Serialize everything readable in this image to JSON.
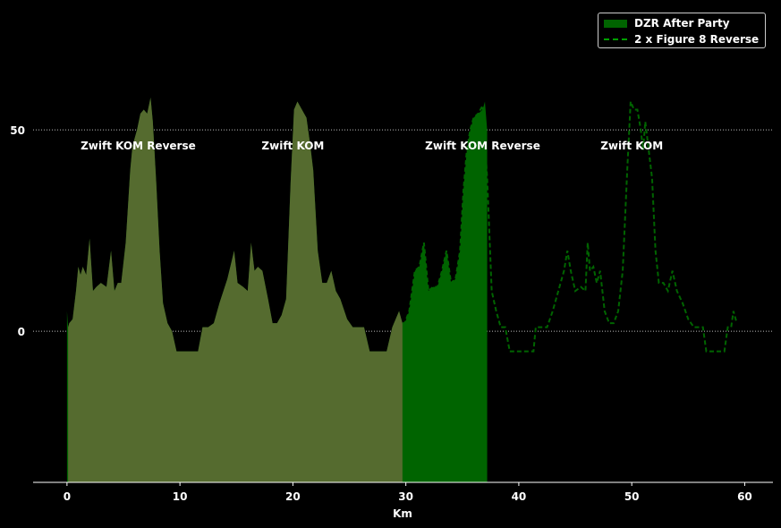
{
  "chart_data": {
    "type": "area",
    "xlabel": "Km",
    "ylabel": "",
    "xlim": [
      -3,
      62.5
    ],
    "ylim": [
      -37.5,
      80
    ],
    "xticks": [
      0,
      10,
      20,
      30,
      40,
      50,
      60
    ],
    "yticks": [
      0,
      50
    ],
    "grid": "horizontal dotted",
    "legend_position": "top-right",
    "colors": {
      "primary_fill": "#006400",
      "overlap_fill": "#556b2f",
      "dashed_line": "#006400",
      "background": "#000000",
      "text": "#ffffff"
    },
    "legend": [
      {
        "label": "DZR After Party",
        "style": "filled-area"
      },
      {
        "label": "2 x Figure 8 Reverse",
        "style": "dashed-line"
      }
    ],
    "segment_labels": [
      {
        "text": "Zwift KOM Reverse",
        "x": 6.3
      },
      {
        "text": "Zwift KOM",
        "x": 20
      },
      {
        "text": "Zwift KOM Reverse",
        "x": 36.8
      },
      {
        "text": "Zwift KOM",
        "x": 50
      }
    ],
    "series": [
      {
        "name": "DZR After Party",
        "x": [
          0,
          0.1,
          0.2,
          0.5,
          0.8,
          1.0,
          1.2,
          1.4,
          1.7,
          2.0,
          2.3,
          2.6,
          3.0,
          3.5,
          3.9,
          4.2,
          4.5,
          4.8,
          5.2,
          5.6,
          5.8,
          6.2,
          6.5,
          6.8,
          7.1,
          7.4,
          7.6,
          7.9,
          8.2,
          8.5,
          8.9,
          9.3,
          9.7,
          10.2,
          10.5,
          11.0,
          11.6,
          12.0,
          12.5,
          13.0,
          13.5,
          14.2,
          14.8,
          15.1,
          15.6,
          16.0,
          16.3,
          16.6,
          16.9,
          17.3,
          17.8,
          18.2,
          18.6,
          19.0,
          19.4,
          19.8,
          20.1,
          20.4,
          20.8,
          21.2,
          21.5,
          21.8,
          22.2,
          22.6,
          23.0,
          23.4,
          23.8,
          24.2,
          24.8,
          25.3,
          25.8,
          26.3,
          26.8,
          27.3,
          27.8,
          28.3,
          28.8,
          29.1,
          29.4,
          29.7,
          29.9,
          30.3,
          30.8,
          31.2,
          31.6,
          32.0,
          32.4,
          32.8,
          33.2,
          33.6,
          34.0,
          34.4,
          34.8,
          35.1,
          35.4,
          35.7,
          36.0,
          36.4,
          36.8,
          37.0,
          37.2
        ],
        "y": [
          5,
          1,
          2,
          3,
          10,
          16,
          14,
          16,
          14,
          23,
          10,
          11,
          12,
          11,
          20,
          10,
          12,
          12,
          22,
          40,
          46,
          50,
          54,
          55,
          54,
          58,
          52,
          37,
          20,
          7,
          2,
          0,
          -5,
          -5,
          -5,
          -5,
          -5,
          1,
          1,
          2,
          7,
          13,
          20,
          12,
          11,
          10,
          22,
          15,
          16,
          15,
          8,
          2,
          2,
          4,
          8,
          37,
          55,
          57,
          55,
          53,
          47,
          40,
          20,
          12,
          12,
          15,
          10,
          8,
          3,
          1,
          1,
          1,
          -5,
          -5,
          -5,
          -5,
          1,
          3,
          5,
          2,
          2,
          5,
          15,
          16,
          22,
          10,
          11,
          11,
          15,
          20,
          12,
          13,
          20,
          35,
          45,
          50,
          53,
          54,
          55,
          57,
          50
        ]
      },
      {
        "name": "2 x Figure 8 Reverse",
        "x": [
          29.7,
          29.9,
          30.3,
          30.8,
          31.2,
          31.6,
          32.0,
          32.4,
          32.8,
          33.2,
          33.6,
          34.0,
          34.4,
          34.8,
          35.1,
          35.4,
          35.7,
          36.0,
          36.4,
          36.8,
          37.2,
          37.6,
          38.0,
          38.4,
          38.8,
          39.2,
          39.5,
          40.0,
          40.5,
          41.0,
          41.3,
          41.5,
          42.0,
          42.5,
          43.0,
          43.5,
          44.0,
          44.3,
          44.6,
          45.0,
          45.5,
          45.9,
          46.1,
          46.3,
          46.6,
          46.9,
          47.2,
          47.6,
          48.0,
          48.4,
          48.8,
          49.2,
          49.6,
          49.9,
          50.2,
          50.5,
          50.8,
          51.0,
          51.2,
          51.5,
          51.8,
          52.1,
          52.4,
          52.8,
          53.2,
          53.6,
          54.0,
          54.5,
          55.0,
          55.5,
          56.0,
          56.3,
          56.6,
          57.0,
          57.5,
          57.9,
          58.2,
          58.5,
          58.8,
          59.0,
          59.3
        ],
        "y": [
          2,
          2,
          5,
          15,
          16,
          22,
          10,
          11,
          11,
          15,
          20,
          12,
          13,
          20,
          35,
          45,
          50,
          53,
          54,
          56,
          38,
          10,
          5,
          1,
          1,
          -5,
          -5,
          -5,
          -5,
          -5,
          -5,
          1,
          1,
          1,
          5,
          10,
          15,
          20,
          15,
          10,
          11,
          10,
          22,
          15,
          16,
          12,
          15,
          5,
          2,
          2,
          5,
          15,
          40,
          57,
          55,
          55,
          50,
          45,
          52,
          45,
          38,
          20,
          12,
          12,
          10,
          15,
          10,
          7,
          3,
          1,
          1,
          1,
          -5,
          -5,
          -5,
          -5,
          -5,
          1,
          1,
          5,
          2
        ]
      }
    ]
  }
}
